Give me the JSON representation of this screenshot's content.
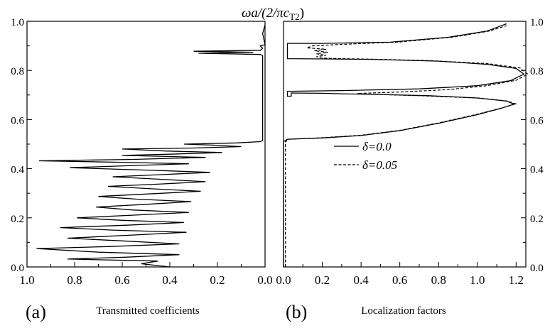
{
  "figure": {
    "top_label": "ωa/(2/πc",
    "top_label_sub": "T2",
    "top_label_close": ")"
  },
  "chart_data": [
    {
      "type": "line",
      "panel_label": "(a)",
      "title": "",
      "xlabel": "Transmitted coefficients",
      "ylabel": "",
      "xlim": [
        1.0,
        0.0
      ],
      "ylim": [
        0.0,
        1.0
      ],
      "x_reversed": true,
      "xticks": [
        "1.0",
        "0.8",
        "0.6",
        "0.4",
        "0.2",
        "0.0"
      ],
      "yticks": [
        "0.0",
        "0.2",
        "0.4",
        "0.6",
        "0.8",
        "1.0"
      ],
      "grid": false,
      "series": [
        {
          "line_style": "solid",
          "color": "#000000",
          "points": [
            [
              0.4,
              0.0
            ],
            [
              0.52,
              0.013
            ],
            [
              0.45,
              0.024
            ],
            [
              0.83,
              0.032
            ],
            [
              0.58,
              0.04
            ],
            [
              0.36,
              0.05
            ],
            [
              0.7,
              0.06
            ],
            [
              0.96,
              0.075
            ],
            [
              0.66,
              0.083
            ],
            [
              0.36,
              0.094
            ],
            [
              0.6,
              0.106
            ],
            [
              0.83,
              0.117
            ],
            [
              0.55,
              0.13
            ],
            [
              0.33,
              0.141
            ],
            [
              0.64,
              0.15
            ],
            [
              0.86,
              0.16
            ],
            [
              0.58,
              0.17
            ],
            [
              0.34,
              0.181
            ],
            [
              0.6,
              0.19
            ],
            [
              0.79,
              0.2
            ],
            [
              0.55,
              0.211
            ],
            [
              0.32,
              0.222
            ],
            [
              0.56,
              0.232
            ],
            [
              0.71,
              0.244
            ],
            [
              0.5,
              0.255
            ],
            [
              0.31,
              0.266
            ],
            [
              0.54,
              0.276
            ],
            [
              0.7,
              0.287
            ],
            [
              0.49,
              0.297
            ],
            [
              0.27,
              0.308
            ],
            [
              0.47,
              0.318
            ],
            [
              0.66,
              0.328
            ],
            [
              0.45,
              0.337
            ],
            [
              0.25,
              0.347
            ],
            [
              0.44,
              0.357
            ],
            [
              0.64,
              0.367
            ],
            [
              0.43,
              0.376
            ],
            [
              0.23,
              0.385
            ],
            [
              0.46,
              0.393
            ],
            [
              0.82,
              0.404
            ],
            [
              0.55,
              0.413
            ],
            [
              0.32,
              0.42
            ],
            [
              0.6,
              0.426
            ],
            [
              0.95,
              0.432
            ],
            [
              0.55,
              0.438
            ],
            [
              0.25,
              0.446
            ],
            [
              0.6,
              0.454
            ],
            [
              0.4,
              0.459
            ],
            [
              0.18,
              0.466
            ],
            [
              0.42,
              0.472
            ],
            [
              0.6,
              0.48
            ],
            [
              0.3,
              0.484
            ],
            [
              0.1,
              0.49
            ],
            [
              0.22,
              0.496
            ],
            [
              0.34,
              0.5
            ],
            [
              0.12,
              0.505
            ],
            [
              0.02,
              0.51
            ],
            [
              0.01,
              0.515
            ],
            [
              0.01,
              0.6
            ],
            [
              0.01,
              0.7
            ],
            [
              0.01,
              0.86
            ],
            [
              0.02,
              0.865
            ],
            [
              0.28,
              0.87
            ],
            [
              0.05,
              0.874
            ],
            [
              0.3,
              0.878
            ],
            [
              0.02,
              0.882
            ],
            [
              0.01,
              0.89
            ],
            [
              0.02,
              0.9
            ],
            [
              0.0,
              0.905
            ],
            [
              0.01,
              0.95
            ],
            [
              0.0,
              0.985
            ]
          ]
        }
      ]
    },
    {
      "type": "line",
      "panel_label": "(b)",
      "title": "",
      "xlabel": "Localization factors",
      "ylabel": "",
      "xlim": [
        0.0,
        1.25
      ],
      "ylim": [
        0.0,
        1.0
      ],
      "xticks": [
        "0.0",
        "0.2",
        "0.4",
        "0.6",
        "0.8",
        "1.0",
        "1.2"
      ],
      "yticks": [
        "0.0",
        "0.2",
        "0.4",
        "0.6",
        "0.8",
        "1.0"
      ],
      "grid": false,
      "legend_position": "center",
      "series": [
        {
          "name": "δ=0.0",
          "line_style": "solid",
          "color": "#000000",
          "points": [
            [
              0.0,
              0.0
            ],
            [
              0.0,
              0.51
            ],
            [
              0.02,
              0.52
            ],
            [
              0.2,
              0.525
            ],
            [
              0.4,
              0.535
            ],
            [
              0.6,
              0.555
            ],
            [
              0.8,
              0.585
            ],
            [
              1.0,
              0.62
            ],
            [
              1.12,
              0.645
            ],
            [
              1.19,
              0.663
            ],
            [
              1.15,
              0.675
            ],
            [
              1.0,
              0.688
            ],
            [
              0.75,
              0.697
            ],
            [
              0.5,
              0.702
            ],
            [
              0.3,
              0.705
            ],
            [
              0.2,
              0.707
            ],
            [
              0.04,
              0.708
            ],
            [
              0.04,
              0.695
            ],
            [
              0.02,
              0.695
            ],
            [
              0.02,
              0.715
            ],
            [
              0.3,
              0.718
            ],
            [
              0.7,
              0.725
            ],
            [
              1.0,
              0.738
            ],
            [
              1.17,
              0.758
            ],
            [
              1.24,
              0.785
            ],
            [
              1.2,
              0.808
            ],
            [
              1.05,
              0.825
            ],
            [
              0.8,
              0.838
            ],
            [
              0.45,
              0.845
            ],
            [
              0.15,
              0.847
            ],
            [
              0.02,
              0.848
            ],
            [
              0.02,
              0.91
            ],
            [
              0.2,
              0.91
            ],
            [
              0.55,
              0.915
            ],
            [
              0.85,
              0.935
            ],
            [
              1.05,
              0.96
            ],
            [
              1.15,
              0.99
            ]
          ]
        },
        {
          "name": "δ=0.05",
          "line_style": "dashed",
          "color": "#000000",
          "points": [
            [
              0.01,
              0.0
            ],
            [
              0.01,
              0.51
            ],
            [
              0.03,
              0.52
            ],
            [
              0.2,
              0.526
            ],
            [
              0.4,
              0.536
            ],
            [
              0.6,
              0.556
            ],
            [
              0.8,
              0.586
            ],
            [
              1.0,
              0.622
            ],
            [
              1.13,
              0.648
            ],
            [
              1.2,
              0.664
            ],
            [
              1.15,
              0.676
            ],
            [
              1.0,
              0.688
            ],
            [
              0.7,
              0.697
            ],
            [
              0.45,
              0.703
            ],
            [
              0.38,
              0.706
            ],
            [
              0.6,
              0.712
            ],
            [
              0.85,
              0.722
            ],
            [
              1.05,
              0.738
            ],
            [
              1.2,
              0.76
            ],
            [
              1.26,
              0.785
            ],
            [
              1.22,
              0.81
            ],
            [
              1.05,
              0.828
            ],
            [
              0.75,
              0.84
            ],
            [
              0.45,
              0.846
            ],
            [
              0.3,
              0.848
            ],
            [
              0.2,
              0.85
            ],
            [
              0.17,
              0.856
            ],
            [
              0.22,
              0.862
            ],
            [
              0.17,
              0.868
            ],
            [
              0.23,
              0.874
            ],
            [
              0.16,
              0.88
            ],
            [
              0.22,
              0.886
            ],
            [
              0.12,
              0.892
            ],
            [
              0.15,
              0.9
            ],
            [
              0.3,
              0.906
            ],
            [
              0.6,
              0.916
            ],
            [
              0.88,
              0.936
            ],
            [
              1.06,
              0.96
            ],
            [
              1.15,
              0.982
            ]
          ]
        }
      ]
    }
  ]
}
